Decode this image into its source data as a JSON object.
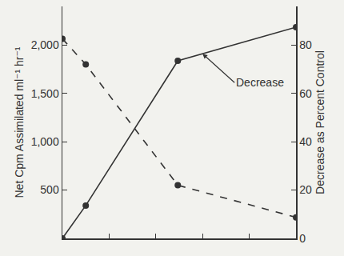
{
  "chart_data": {
    "type": "line",
    "x": [
      0,
      0.5,
      2.47,
      5
    ],
    "xlim": [
      0,
      5
    ],
    "xticks": [
      0,
      1,
      2,
      3,
      4,
      5
    ],
    "ylim": [
      0,
      2400
    ],
    "yticks": [
      {
        "value": 500,
        "label": "500"
      },
      {
        "value": 1000,
        "label": "1,000"
      },
      {
        "value": 1500,
        "label": "1,500"
      },
      {
        "value": 2000,
        "label": "2,000"
      }
    ],
    "y2lim": [
      0,
      96
    ],
    "y2ticks": [
      0,
      20,
      40,
      60,
      80
    ],
    "y_label": "Net Cpm Assimilated ml⁻¹ hr⁻¹",
    "y2_label": "Decrease as Percent Control",
    "tick_labels": "y",
    "grid": false,
    "series": [
      {
        "axis": "y",
        "color": "#333333",
        "line_style": "dashed",
        "marker": "circle",
        "values": [
          2065,
          1800,
          550,
          218
        ]
      },
      {
        "axis": "y2",
        "color": "#333333",
        "line_style": "solid",
        "marker": "circle",
        "values": [
          0,
          13.6,
          73.5,
          87.4
        ]
      }
    ],
    "annotations": [
      {
        "text": "Decrease",
        "x": 3.0,
        "y": 76.4,
        "axis": "y2"
      }
    ]
  }
}
